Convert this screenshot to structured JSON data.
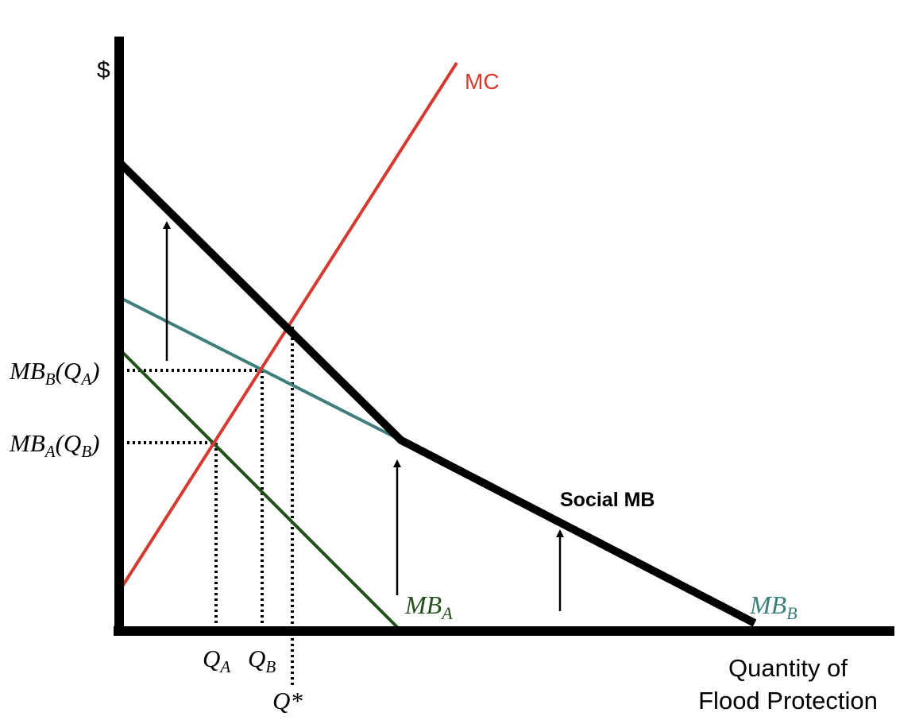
{
  "chart_data": {
    "type": "line",
    "title": "",
    "ylabel": "$",
    "xlabel_lines": [
      "Quantity of",
      "Flood Protection"
    ],
    "xlim": [
      0,
      980
    ],
    "ylim": [
      0,
      745
    ],
    "grid": false,
    "colors": {
      "mc": "#d63a2f",
      "mb_a": "#22501a",
      "mb_b": "#3d7f7b",
      "social_mb": "#000000",
      "axis": "#000000"
    },
    "series": [
      {
        "name": "MC",
        "x": [
          0,
          425
        ],
        "y": [
          50,
          715
        ]
      },
      {
        "name": "MB_A",
        "x": [
          0,
          355
        ],
        "y": [
          355,
          0
        ]
      },
      {
        "name": "MB_B",
        "x": [
          0,
          355
        ],
        "y": [
          420,
          240
        ]
      },
      {
        "name": "Social MB",
        "x": [
          0,
          355,
          800
        ],
        "y": [
          590,
          240,
          10
        ]
      }
    ],
    "series_labels": {
      "mc": "MC",
      "mb_a_main": "MB",
      "mb_a_sub": "A",
      "mb_b_main": "MB",
      "mb_b_sub": "B",
      "social_mb": "Social MB"
    },
    "quantity_marks": [
      {
        "key": "qa",
        "x": 122,
        "y": 237,
        "main": "Q",
        "sub": "A"
      },
      {
        "key": "qb",
        "x": 180,
        "y": 328,
        "main": "Q",
        "sub": "B"
      },
      {
        "key": "qstar",
        "x": 218,
        "y": 383,
        "main": "Q",
        "sub": "",
        "suffix": "*"
      }
    ],
    "price_marks": [
      {
        "key": "mbb_qa",
        "y": 328,
        "text": [
          "MB",
          "B",
          "(Q",
          "A",
          ")"
        ]
      },
      {
        "key": "mba_qb",
        "y": 237,
        "text": [
          "MB",
          "A",
          "(Q",
          "B",
          ")"
        ]
      }
    ],
    "vertical_shift_arrows": [
      {
        "x": 60,
        "y_from": 340,
        "y_to": 515
      },
      {
        "x": 350,
        "y_from": 45,
        "y_to": 215
      },
      {
        "x": 555,
        "y_from": 25,
        "y_to": 127
      }
    ]
  }
}
